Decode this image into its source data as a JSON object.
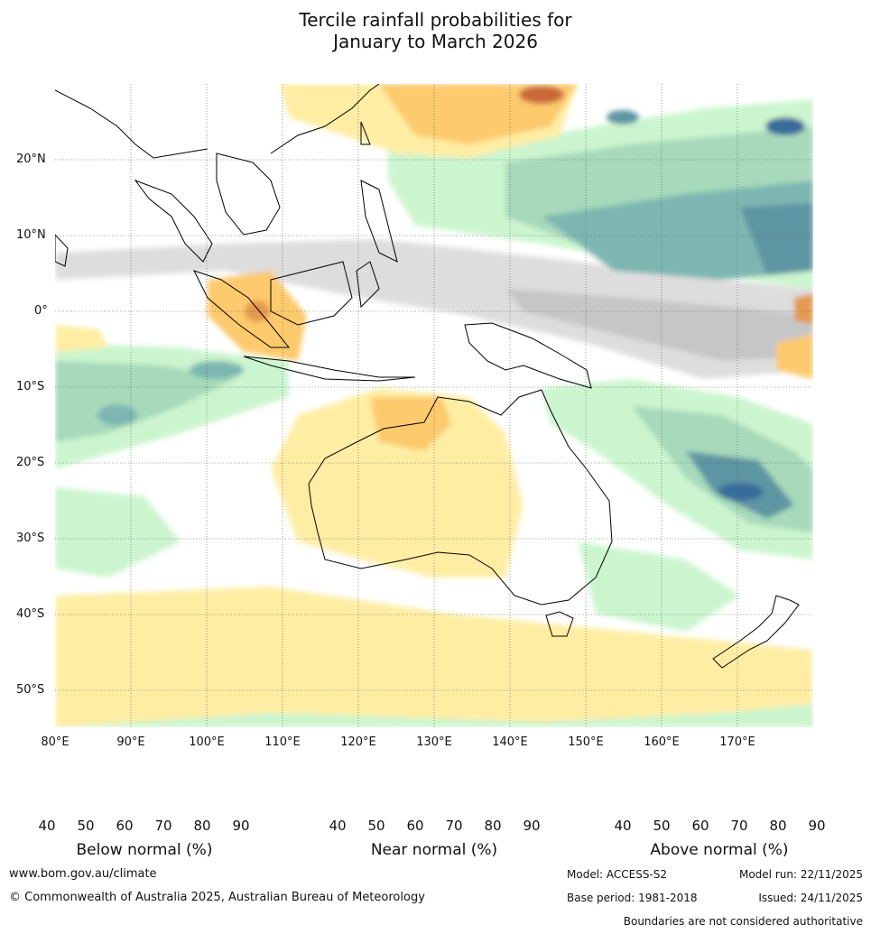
{
  "title_line1": "Tercile rainfall probabilities for",
  "title_line2": "January to March 2026",
  "map": {
    "lon_range": [
      80,
      180
    ],
    "lat_range": [
      -55,
      30
    ],
    "lat_labels": [
      "20°N",
      "10°N",
      "0°",
      "10°S",
      "20°S",
      "30°S",
      "40°S",
      "50°S"
    ],
    "lon_labels": [
      "80°E",
      "90°E",
      "100°E",
      "110°E",
      "120°E",
      "130°E",
      "140°E",
      "150°E",
      "160°E",
      "170°E"
    ]
  },
  "colorbars": {
    "below": {
      "title": "Below normal (%)",
      "ticks": [
        "40",
        "50",
        "60",
        "70",
        "80",
        "90"
      ],
      "colors": [
        "#ffeda0",
        "#fdc866",
        "#e39445",
        "#c8612f",
        "#ad4523",
        "#8c2d16"
      ]
    },
    "near": {
      "title": "Near normal (%)",
      "ticks": [
        "40",
        "50",
        "60",
        "70",
        "80",
        "90"
      ],
      "colors": [
        "#e6e6e6",
        "#d4d4d4",
        "#c2c2c2",
        "#b1b1b1",
        "#9e9e9e",
        "#7f7f7f"
      ]
    },
    "above": {
      "title": "Above normal (%)",
      "ticks": [
        "40",
        "50",
        "60",
        "70",
        "80",
        "90"
      ],
      "colors": [
        "#c9f5cc",
        "#a3d8b8",
        "#77b3ad",
        "#56909f",
        "#2f6596",
        "#124a86"
      ]
    }
  },
  "footer": {
    "website": "www.bom.gov.au/climate",
    "copyright": "© Commonwealth of Australia 2025, Australian Bureau of Meteorology",
    "model": "Model: ACCESS-S2",
    "model_run": "Model run: 22/11/2025",
    "base_period": "Base period: 1981-2018",
    "issued": "Issued: 24/11/2025",
    "disclaimer": "Boundaries are not considered authoritative"
  }
}
